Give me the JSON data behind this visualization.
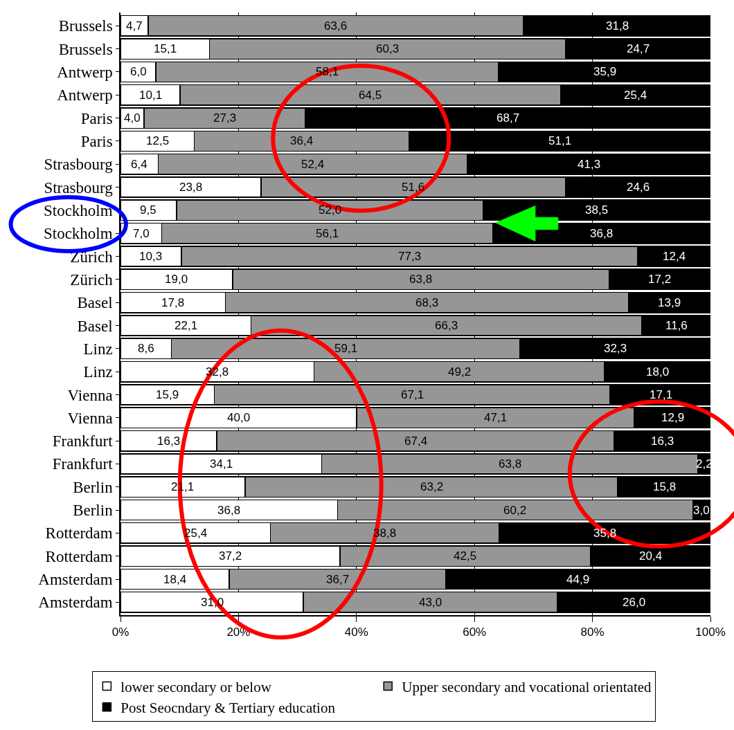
{
  "chart_data": {
    "type": "bar",
    "orientation": "horizontal",
    "stacked": true,
    "categories": [
      "Brussels",
      "Brussels",
      "Antwerp",
      "Antwerp",
      "Paris",
      "Paris",
      "Strasbourg",
      "Strasbourg",
      "Stockholm",
      "Stockholm",
      "Zürich",
      "Zürich",
      "Basel",
      "Basel",
      "Linz",
      "Linz",
      "Vienna",
      "Vienna",
      "Frankfurt",
      "Frankfurt",
      "Berlin",
      "Berlin",
      "Rotterdam",
      "Rotterdam",
      "Amsterdam",
      "Amsterdam"
    ],
    "series": [
      {
        "name": "lower secondary or below",
        "color": "#ffffff",
        "values": [
          4.7,
          15.1,
          6.0,
          10.1,
          4.0,
          12.5,
          6.4,
          23.8,
          9.5,
          7.0,
          10.3,
          19.0,
          17.8,
          22.1,
          8.6,
          32.8,
          15.9,
          40.0,
          16.3,
          34.1,
          21.1,
          36.8,
          25.4,
          37.2,
          18.4,
          31.0
        ],
        "value_labels": [
          "4,7",
          "15,1",
          "6,0",
          "10,1",
          "4,0",
          "12,5",
          "6,4",
          "23,8",
          "9,5",
          "7,0",
          "10,3",
          "19,0",
          "17,8",
          "22,1",
          "8,6",
          "32,8",
          "15,9",
          "40,0",
          "16,3",
          "34,1",
          "21,1",
          "36,8",
          "25,4",
          "37,2",
          "18,4",
          "31,0"
        ]
      },
      {
        "name": "Upper secondary and vocational orientated",
        "color": "#969696",
        "values": [
          63.6,
          60.3,
          58.1,
          64.5,
          27.3,
          36.4,
          52.4,
          51.6,
          52.0,
          56.1,
          77.3,
          63.8,
          68.3,
          66.3,
          59.1,
          49.2,
          67.1,
          47.1,
          67.4,
          63.8,
          63.2,
          60.2,
          38.8,
          42.5,
          36.7,
          43.0
        ],
        "value_labels": [
          "63,6",
          "60,3",
          "58,1",
          "64,5",
          "27,3",
          "36,4",
          "52,4",
          "51,6",
          "52,0",
          "56,1",
          "77,3",
          "63,8",
          "68,3",
          "66,3",
          "59,1",
          "49,2",
          "67,1",
          "47,1",
          "67,4",
          "63,8",
          "63,2",
          "60,2",
          "38,8",
          "42,5",
          "36,7",
          "43,0"
        ]
      },
      {
        "name": "Post Seocndary & Tertiary education",
        "color": "#000000",
        "values": [
          31.8,
          24.7,
          35.9,
          25.4,
          68.7,
          51.1,
          41.3,
          24.6,
          38.5,
          36.8,
          12.4,
          17.2,
          13.9,
          11.6,
          32.3,
          18.0,
          17.1,
          12.9,
          16.3,
          2.2,
          15.8,
          3.0,
          35.8,
          20.4,
          44.9,
          26.0
        ],
        "value_labels": [
          "31,8",
          "24,7",
          "35,9",
          "25,4",
          "68,7",
          "51,1",
          "41,3",
          "24,6",
          "38,5",
          "36,8",
          "12,4",
          "17,2",
          "13,9",
          "11,6",
          "32,3",
          "18,0",
          "17,1",
          "12,9",
          "16,3",
          "2,2",
          "15,8",
          "3,0",
          "35,8",
          "20,4",
          "44,9",
          "26,0"
        ]
      }
    ],
    "xlim": [
      0,
      100
    ],
    "xticks": [
      {
        "value": 0,
        "label": "0%"
      },
      {
        "value": 20,
        "label": "20%"
      },
      {
        "value": 40,
        "label": "40%"
      },
      {
        "value": 60,
        "label": "60%"
      },
      {
        "value": 80,
        "label": "80%"
      },
      {
        "value": 100,
        "label": "100%"
      }
    ],
    "grid": "x",
    "legend": "bottom"
  }
}
